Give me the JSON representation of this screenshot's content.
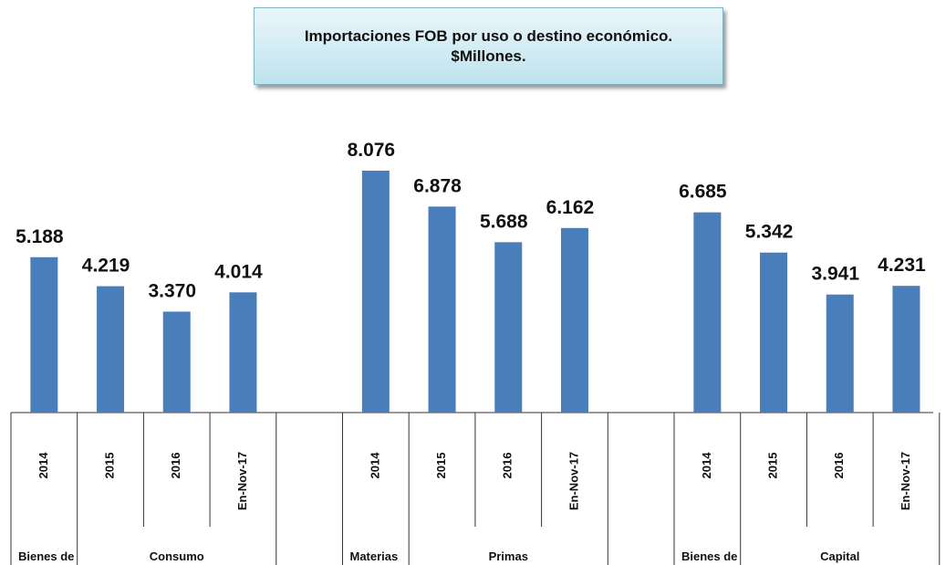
{
  "chart_data": {
    "type": "bar",
    "title": "Importaciones  FOB por uso o destino económico.",
    "subtitle": "$Millones.",
    "categories": [
      "2014",
      "2015",
      "2016",
      "En-Nov-17",
      null,
      "2014",
      "2015",
      "2016",
      "En-Nov-17",
      null,
      "2014",
      "2015",
      "2016",
      "En-Nov-17",
      null
    ],
    "values": [
      5188,
      4219,
      3370,
      4014,
      null,
      8076,
      6878,
      5688,
      6162,
      null,
      6685,
      5342,
      3941,
      4231,
      null
    ],
    "value_labels": [
      "5.188",
      "4.219",
      "3.370",
      "4.014",
      null,
      "8.076",
      "6.878",
      "5.688",
      "6.162",
      null,
      "6.685",
      "5.342",
      "3.941",
      "4.231",
      null
    ],
    "group_labels": [
      "Bienes de",
      "Consumo",
      "Materias",
      "Primas",
      "Bienes de",
      "Capital"
    ],
    "color": "#4a7ebb"
  }
}
